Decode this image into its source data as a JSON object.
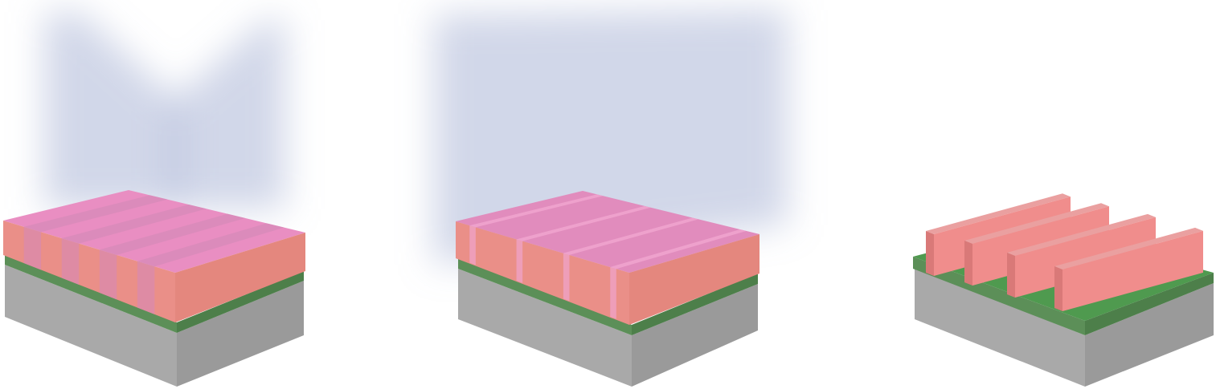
{
  "diagram": {
    "panel_count": 3,
    "panels": [
      {
        "id": "panel-1",
        "resist_pattern": "alternating-exposure-stripes",
        "light_pattern": "two-beam-interference-v",
        "stripe_count": 4
      },
      {
        "id": "panel-2",
        "resist_pattern": "narrow-exposure-lines",
        "light_pattern": "broad-flood-exposure",
        "stripe_count": 4
      },
      {
        "id": "panel-3",
        "resist_pattern": "developed-grating-ridges",
        "light_pattern": "none",
        "stripe_count": 4
      }
    ],
    "colors": {
      "substrate_top": "#bdbdbd",
      "substrate_front": "#a9a9a9",
      "substrate_side": "#9a9a9a",
      "interlayer_top": "#4f9a4f",
      "interlayer_front": "#5c8f58",
      "interlayer_side": "#4d7f4a",
      "resist_top": "#e98ec2",
      "resist_front": "#ea8f88",
      "resist_side": "#e4877e",
      "stripe_dark": "#d689b8",
      "stripe_light": "#f0a4cf",
      "ridge_top": "#eaa0a0",
      "ridge_face": "#f08d8c",
      "ridge_side": "#d97978",
      "light": "#9aa6cf"
    }
  }
}
